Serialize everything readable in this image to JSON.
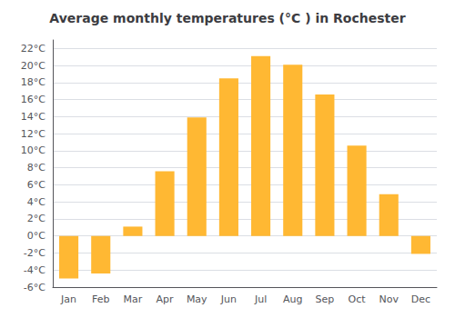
{
  "chart_data": {
    "type": "bar",
    "title": "Average monthly temperatures (°C ) in Rochester",
    "categories": [
      "Jan",
      "Feb",
      "Mar",
      "Apr",
      "May",
      "Jun",
      "Jul",
      "Aug",
      "Sep",
      "Oct",
      "Nov",
      "Dec"
    ],
    "values": [
      -5.0,
      -4.4,
      1.1,
      7.6,
      13.9,
      18.5,
      21.1,
      20.1,
      16.6,
      10.6,
      4.9,
      -2.1
    ],
    "color": "#FFB833",
    "ylim": [
      -6,
      23
    ],
    "yticks": [
      {
        "value": -6,
        "label": "-6°C"
      },
      {
        "value": -4,
        "label": "-4°C"
      },
      {
        "value": -2,
        "label": "-2°C"
      },
      {
        "value": 0,
        "label": "0°C"
      },
      {
        "value": 2,
        "label": "2°C"
      },
      {
        "value": 4,
        "label": "4°C"
      },
      {
        "value": 6,
        "label": "6°C"
      },
      {
        "value": 8,
        "label": "8°C"
      },
      {
        "value": 10,
        "label": "10°C"
      },
      {
        "value": 12,
        "label": "12°C"
      },
      {
        "value": 14,
        "label": "14°C"
      },
      {
        "value": 16,
        "label": "16°C"
      },
      {
        "value": 18,
        "label": "18°C"
      },
      {
        "value": 20,
        "label": "20°C"
      },
      {
        "value": 22,
        "label": "22°C"
      }
    ],
    "grid": true
  }
}
